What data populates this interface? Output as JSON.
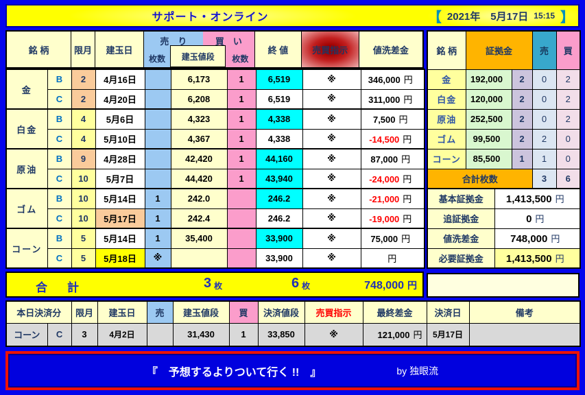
{
  "page": {
    "title": "サポート・オンライン",
    "date": {
      "open": "【",
      "text": "2021年　5月17日",
      "time": "15:15",
      "close": "】"
    }
  },
  "main_table": {
    "headers": {
      "meigara": "銘 柄",
      "gengetsu": "限月",
      "tategyokubi": "建玉日",
      "uri": "売　り",
      "kai": "買　い",
      "maisu_uri": "枚数",
      "maisu_kai": "枚数",
      "tategyoku_nedan": "建玉値段",
      "owarine": "終 値",
      "baibai_shiji": "売買指示",
      "nearai_sakin": "値洗差金"
    },
    "groups": [
      {
        "name": "金",
        "rows": [
          {
            "letter": "B",
            "month": "2",
            "month_bg": "peach",
            "date": "4月16日",
            "date_bg": "white",
            "sell": "",
            "price": "6,173",
            "buy": "1",
            "close": "6,519",
            "close_bg": "cyan",
            "instruction": "※",
            "diff": "346,000",
            "diff_negative": false,
            "unit": "円"
          },
          {
            "letter": "C",
            "month": "2",
            "month_bg": "peach",
            "date": "4月20日",
            "date_bg": "white",
            "sell": "",
            "price": "6,208",
            "buy": "1",
            "close": "6,519",
            "close_bg": "white",
            "instruction": "※",
            "diff": "311,000",
            "diff_negative": false,
            "unit": "円"
          }
        ]
      },
      {
        "name": "白金",
        "rows": [
          {
            "letter": "B",
            "month": "4",
            "month_bg": "yellow",
            "date": "5月6日",
            "date_bg": "white",
            "sell": "",
            "price": "4,323",
            "buy": "1",
            "close": "4,338",
            "close_bg": "cyan",
            "instruction": "※",
            "diff": "7,500",
            "diff_negative": false,
            "unit": "円"
          },
          {
            "letter": "C",
            "month": "4",
            "month_bg": "yellow",
            "date": "5月10日",
            "date_bg": "white",
            "sell": "",
            "price": "4,367",
            "buy": "1",
            "close": "4,338",
            "close_bg": "white",
            "instruction": "※",
            "diff": "-14,500",
            "diff_negative": true,
            "unit": "円"
          }
        ]
      },
      {
        "name": "原油",
        "rows": [
          {
            "letter": "B",
            "month": "9",
            "month_bg": "peach",
            "date": "4月28日",
            "date_bg": "white",
            "sell": "",
            "price": "42,420",
            "buy": "1",
            "close": "44,160",
            "close_bg": "cyan",
            "instruction": "※",
            "diff": "87,000",
            "diff_negative": false,
            "unit": "円"
          },
          {
            "letter": "C",
            "month": "10",
            "month_bg": "yellow",
            "date": "5月7日",
            "date_bg": "white",
            "sell": "",
            "price": "44,420",
            "buy": "1",
            "close": "43,940",
            "close_bg": "cyan",
            "instruction": "※",
            "diff": "-24,000",
            "diff_negative": true,
            "unit": "円"
          }
        ]
      },
      {
        "name": "ゴム",
        "rows": [
          {
            "letter": "B",
            "month": "10",
            "month_bg": "yellow",
            "date": "5月14日",
            "date_bg": "white",
            "sell": "1",
            "price": "242.0",
            "buy": "",
            "close": "246.2",
            "close_bg": "cyan",
            "instruction": "※",
            "diff": "-21,000",
            "diff_negative": true,
            "unit": "円"
          },
          {
            "letter": "C",
            "month": "10",
            "month_bg": "yellow",
            "date": "5月17日",
            "date_bg": "peach",
            "sell": "1",
            "price": "242.4",
            "buy": "",
            "close": "246.2",
            "close_bg": "white",
            "instruction": "※",
            "diff": "-19,000",
            "diff_negative": true,
            "unit": "円"
          }
        ]
      },
      {
        "name": "コーン",
        "rows": [
          {
            "letter": "B",
            "month": "5",
            "month_bg": "yellow",
            "date": "5月14日",
            "date_bg": "white",
            "sell": "1",
            "price": "35,400",
            "buy": "",
            "close": "33,900",
            "close_bg": "cyan",
            "instruction": "※",
            "diff": "75,000",
            "diff_negative": false,
            "unit": "円"
          },
          {
            "letter": "C",
            "month": "5",
            "month_bg": "yellow",
            "date": "5月18日",
            "date_bg": "bright",
            "sell": "※",
            "price": "",
            "buy": "",
            "close": "33,900",
            "close_bg": "white",
            "instruction": "※",
            "diff": "",
            "diff_negative": false,
            "unit": "円"
          }
        ]
      }
    ],
    "total": {
      "label": "合　計",
      "sell_count": "3",
      "sell_unit": "枚",
      "buy_count": "6",
      "buy_unit": "枚",
      "amount": "748,000",
      "unit": "円"
    }
  },
  "margin_panel": {
    "headers": {
      "meigara": "銘 柄",
      "shokokin": "証拠金",
      "uri": "売",
      "kai": "買"
    },
    "rows": [
      {
        "name": "金",
        "margin": "192,000",
        "lots": "2",
        "sell": "0",
        "buy": "2"
      },
      {
        "name": "白金",
        "margin": "120,000",
        "lots": "2",
        "sell": "0",
        "buy": "2"
      },
      {
        "name": "原油",
        "margin": "252,500",
        "lots": "2",
        "sell": "0",
        "buy": "2"
      },
      {
        "name": "ゴム",
        "margin": "99,500",
        "lots": "2",
        "sell": "2",
        "buy": "0"
      },
      {
        "name": "コーン",
        "margin": "85,500",
        "lots": "1",
        "sell": "1",
        "buy": "0"
      }
    ],
    "total": {
      "label": "合計枚数",
      "sell": "3",
      "buy": "6"
    },
    "summary": [
      {
        "label": "基本証拠金",
        "value": "1,413,500",
        "unit": "円",
        "highlight": false
      },
      {
        "label": "追証拠金",
        "value": "0",
        "unit": "円",
        "highlight": false
      },
      {
        "label": "値洗差金",
        "value": "748,000",
        "unit": "円",
        "highlight": false
      },
      {
        "label": "必要証拠金",
        "value": "1,413,500",
        "unit": "円",
        "highlight": true
      }
    ]
  },
  "settlement_table": {
    "headers": {
      "honjitsu": "本日決済分",
      "gengetsu": "限月",
      "tategyokubi": "建玉日",
      "uri": "売",
      "tategyoku_nedan": "建玉値段",
      "kai": "買",
      "kessai_nedan": "決済値段",
      "baibai_shiji": "売買指示",
      "saishu_sakin": "最終差金",
      "kessaibi": "決済日",
      "biko": "備考"
    },
    "row": {
      "name": "コーン",
      "letter": "C",
      "month": "3",
      "date": "4月2日",
      "sell": "",
      "price": "31,430",
      "buy": "1",
      "settle_price": "33,850",
      "instruction": "※",
      "diff": "121,000",
      "unit": "円",
      "settle_date": "5月17日",
      "note": ""
    }
  },
  "banner": {
    "quote": "『　予想するよりついて行く !!　』",
    "byline": "by 独眼流"
  },
  "colors": {
    "page_blue": "#0505EC",
    "highlight_yellow": "#FFFF00",
    "cell_yellow": "#FFFFCC",
    "sell_blue": "#9CC9F2",
    "buy_pink": "#FB9DCB",
    "close_cyan": "#00FFFF",
    "negative_red": "#FF0000",
    "header_orange": "#FFB400",
    "teal_sell": "#38A8CC",
    "margin_green": "#D9F7CF",
    "lots_purple": "#CCC4DD",
    "instruction_red": "#C00000",
    "banner_border_red": "#EE1100",
    "banner_blue": "#0101DE"
  }
}
